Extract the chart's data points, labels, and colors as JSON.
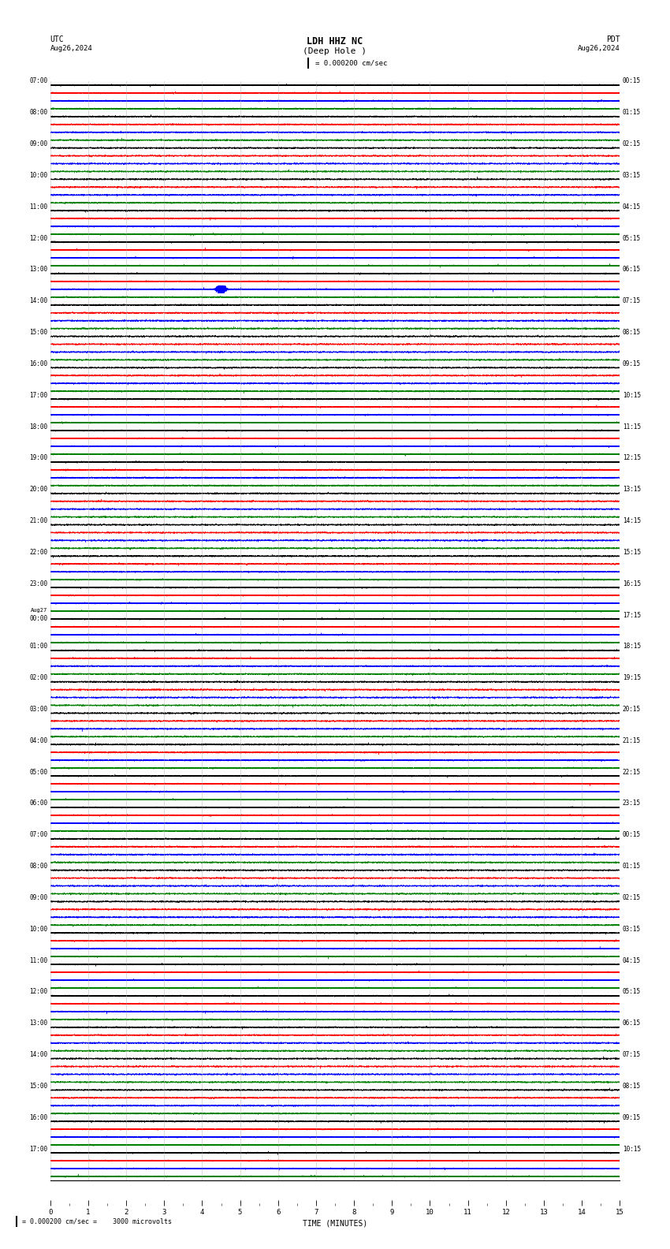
{
  "title_line1": "LDH HHZ NC",
  "title_line2": "(Deep Hole )",
  "scale_label": "= 0.000200 cm/sec",
  "utc_label": "UTC",
  "pdt_label": "PDT",
  "date_left": "Aug26,2024",
  "date_right": "Aug26,2024",
  "bottom_note": "= 0.000200 cm/sec =    3000 microvolts",
  "xlabel": "TIME (MINUTES)",
  "bg_color": "#ffffff",
  "trace_colors": [
    "black",
    "red",
    "blue",
    "green"
  ],
  "grid_color": "#aaaaaa",
  "num_rows": 35,
  "traces_per_row": 4,
  "minutes_per_row": 15,
  "sample_rate": 40,
  "fig_width": 8.5,
  "fig_height": 15.84,
  "left_times_utc": [
    "07:00",
    "08:00",
    "09:00",
    "10:00",
    "11:00",
    "12:00",
    "13:00",
    "14:00",
    "15:00",
    "16:00",
    "17:00",
    "18:00",
    "19:00",
    "20:00",
    "21:00",
    "22:00",
    "23:00",
    "Aug27\n00:00",
    "01:00",
    "02:00",
    "03:00",
    "04:00",
    "05:00",
    "06:00",
    "07:00",
    "08:00",
    "09:00",
    "10:00",
    "11:00",
    "12:00",
    "13:00",
    "14:00",
    "15:00",
    "16:00",
    "17:00"
  ],
  "right_times_pdt": [
    "00:15",
    "01:15",
    "02:15",
    "03:15",
    "04:15",
    "05:15",
    "06:15",
    "07:15",
    "08:15",
    "09:15",
    "10:15",
    "11:15",
    "12:15",
    "13:15",
    "14:15",
    "15:15",
    "16:15",
    "17:15",
    "18:15",
    "19:15",
    "20:15",
    "21:15",
    "22:15",
    "23:15",
    "00:15",
    "01:15",
    "02:15",
    "03:15",
    "04:15",
    "05:15",
    "06:15",
    "07:15",
    "08:15",
    "09:15",
    "10:15"
  ],
  "quake_row": 6,
  "quake_trace": 2,
  "quake_minute": 4.5,
  "noise_amplitude": 0.18,
  "quake_amplitude": 1.2
}
